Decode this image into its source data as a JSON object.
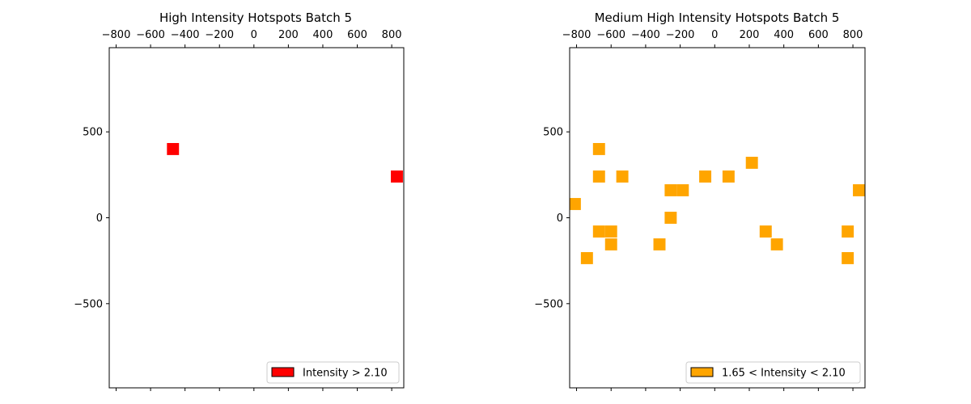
{
  "chart_data": [
    {
      "type": "heatmap",
      "title": "High Intensity Hotspots Batch 5",
      "xlabel": "",
      "ylabel": "",
      "xlim": [
        -840,
        870
      ],
      "ylim": [
        -990,
        990
      ],
      "x_ticks": [
        -800,
        -600,
        -400,
        -200,
        0,
        200,
        400,
        600,
        800
      ],
      "x_tick_labels": [
        "−800",
        "−600",
        "−400",
        "−200",
        "0",
        "200",
        "400",
        "600",
        "800"
      ],
      "x_tick_position": "top",
      "y_ticks": [
        500,
        0,
        -500
      ],
      "y_tick_labels": [
        "500",
        "0",
        "−500"
      ],
      "cell_size": 70,
      "color": "#ff0000",
      "cells": [
        {
          "x": -470,
          "y": 400
        },
        {
          "x": 830,
          "y": 240
        }
      ],
      "legend": {
        "label": "Intensity > 2.10",
        "position": "lower-right",
        "color": "#ff0000"
      },
      "grid": false
    },
    {
      "type": "heatmap",
      "title": "Medium High Intensity Hotspots Batch 5",
      "xlabel": "",
      "ylabel": "",
      "xlim": [
        -840,
        870
      ],
      "ylim": [
        -990,
        990
      ],
      "x_ticks": [
        -800,
        -600,
        -400,
        -200,
        0,
        200,
        400,
        600,
        800
      ],
      "x_tick_labels": [
        "−800",
        "−600",
        "−400",
        "−200",
        "0",
        "200",
        "400",
        "600",
        "800"
      ],
      "x_tick_position": "top",
      "y_ticks": [
        500,
        0,
        -500
      ],
      "y_tick_labels": [
        "500",
        "0",
        "−500"
      ],
      "cell_size": 70,
      "color": "#ffa500",
      "cells": [
        {
          "x": -670,
          "y": 400
        },
        {
          "x": -670,
          "y": 240
        },
        {
          "x": -535,
          "y": 240
        },
        {
          "x": -55,
          "y": 240
        },
        {
          "x": 80,
          "y": 240
        },
        {
          "x": 215,
          "y": 320
        },
        {
          "x": -810,
          "y": 80
        },
        {
          "x": -255,
          "y": 160
        },
        {
          "x": -185,
          "y": 160
        },
        {
          "x": 835,
          "y": 160
        },
        {
          "x": -255,
          "y": 0
        },
        {
          "x": -670,
          "y": -80
        },
        {
          "x": -600,
          "y": -80
        },
        {
          "x": 295,
          "y": -80
        },
        {
          "x": 770,
          "y": -80
        },
        {
          "x": -600,
          "y": -155
        },
        {
          "x": -320,
          "y": -155
        },
        {
          "x": 360,
          "y": -155
        },
        {
          "x": -740,
          "y": -235
        },
        {
          "x": 770,
          "y": -235
        }
      ],
      "legend": {
        "label": "1.65 < Intensity < 2.10",
        "position": "lower-right",
        "color": "#ffa500"
      },
      "grid": false
    }
  ]
}
